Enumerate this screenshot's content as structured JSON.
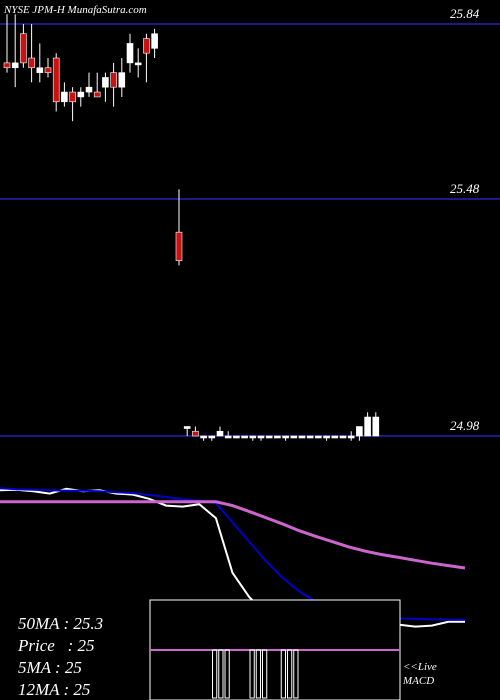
{
  "header": {
    "title": "NYSE JPM-H MunafaSutra.com"
  },
  "stats": {
    "ma50": "50MA : 25.3",
    "price": "Price   : 25",
    "ma5": "5MA : 25",
    "ma12": "12MA : 25"
  },
  "macd_panel": {
    "live_label": "<<Live",
    "macd_label": "MACD"
  },
  "colors": {
    "background": "#000000",
    "up_candle": "#ffffff",
    "down_candle": "#cc1111",
    "price_line": "#1a1a8a",
    "ma_short": "#0000cc",
    "ma_long": "#cc66cc",
    "price_path": "#ffffff"
  },
  "chart_data": [
    {
      "type": "candlestick",
      "title": "NYSE JPM-H MunafaSutra.com",
      "price_levels": [
        25.84,
        25.48,
        24.98
      ],
      "y_range": [
        24.96,
        25.88
      ],
      "candles": [
        {
          "o": 25.76,
          "h": 25.86,
          "l": 25.74,
          "c": 25.75
        },
        {
          "o": 25.75,
          "h": 25.86,
          "l": 25.71,
          "c": 25.76
        },
        {
          "o": 25.82,
          "h": 25.84,
          "l": 25.75,
          "c": 25.76
        },
        {
          "o": 25.77,
          "h": 25.84,
          "l": 25.72,
          "c": 25.75
        },
        {
          "o": 25.74,
          "h": 25.8,
          "l": 25.72,
          "c": 25.75
        },
        {
          "o": 25.75,
          "h": 25.77,
          "l": 25.73,
          "c": 25.74
        },
        {
          "o": 25.77,
          "h": 25.78,
          "l": 25.66,
          "c": 25.68
        },
        {
          "o": 25.68,
          "h": 25.72,
          "l": 25.67,
          "c": 25.7
        },
        {
          "o": 25.7,
          "h": 25.71,
          "l": 25.64,
          "c": 25.68
        },
        {
          "o": 25.69,
          "h": 25.71,
          "l": 25.67,
          "c": 25.7
        },
        {
          "o": 25.7,
          "h": 25.74,
          "l": 25.69,
          "c": 25.71
        },
        {
          "o": 25.7,
          "h": 25.74,
          "l": 25.69,
          "c": 25.69
        },
        {
          "o": 25.71,
          "h": 25.74,
          "l": 25.68,
          "c": 25.73
        },
        {
          "o": 25.74,
          "h": 25.76,
          "l": 25.67,
          "c": 25.71
        },
        {
          "o": 25.71,
          "h": 25.77,
          "l": 25.69,
          "c": 25.74
        },
        {
          "o": 25.76,
          "h": 25.82,
          "l": 25.74,
          "c": 25.8
        },
        {
          "o": 25.76,
          "h": 25.79,
          "l": 25.73,
          "c": 25.76
        },
        {
          "o": 25.81,
          "h": 25.82,
          "l": 25.72,
          "c": 25.78
        },
        {
          "o": 25.79,
          "h": 25.83,
          "l": 25.77,
          "c": 25.82
        },
        {
          "o": null,
          "h": null,
          "l": null,
          "c": null
        },
        {
          "o": 25.41,
          "h": 25.5,
          "l": 25.34,
          "c": 25.35
        },
        {
          "o": 25.0,
          "h": 25.0,
          "l": 24.98,
          "c": 25.0
        },
        {
          "o": 24.99,
          "h": 25.0,
          "l": 24.98,
          "c": 24.98
        },
        {
          "o": 24.98,
          "h": 24.98,
          "l": 24.97,
          "c": 24.98
        },
        {
          "o": 24.98,
          "h": 24.98,
          "l": 24.97,
          "c": 24.98
        },
        {
          "o": 24.98,
          "h": 25.0,
          "l": 24.98,
          "c": 24.99
        },
        {
          "o": 24.98,
          "h": 24.99,
          "l": 24.98,
          "c": 24.98
        },
        {
          "o": 24.98,
          "h": 24.98,
          "l": 24.98,
          "c": 24.98
        },
        {
          "o": 24.98,
          "h": 24.98,
          "l": 24.98,
          "c": 24.98
        },
        {
          "o": 24.98,
          "h": 24.98,
          "l": 24.97,
          "c": 24.98
        },
        {
          "o": 24.98,
          "h": 24.98,
          "l": 24.97,
          "c": 24.98
        },
        {
          "o": 24.98,
          "h": 24.98,
          "l": 24.98,
          "c": 24.98
        },
        {
          "o": 24.98,
          "h": 24.98,
          "l": 24.98,
          "c": 24.98
        },
        {
          "o": 24.98,
          "h": 24.98,
          "l": 24.97,
          "c": 24.98
        },
        {
          "o": 24.98,
          "h": 24.98,
          "l": 24.98,
          "c": 24.98
        },
        {
          "o": 24.98,
          "h": 24.98,
          "l": 24.98,
          "c": 24.98
        },
        {
          "o": 24.98,
          "h": 24.98,
          "l": 24.98,
          "c": 24.98
        },
        {
          "o": 24.98,
          "h": 24.98,
          "l": 24.98,
          "c": 24.98
        },
        {
          "o": 24.98,
          "h": 24.98,
          "l": 24.97,
          "c": 24.98
        },
        {
          "o": 24.98,
          "h": 24.98,
          "l": 24.98,
          "c": 24.98
        },
        {
          "o": 24.98,
          "h": 24.98,
          "l": 24.98,
          "c": 24.98
        },
        {
          "o": 24.98,
          "h": 24.99,
          "l": 24.97,
          "c": 24.98
        },
        {
          "o": 24.98,
          "h": 25.0,
          "l": 24.97,
          "c": 25.0
        },
        {
          "o": 24.98,
          "h": 25.03,
          "l": 24.98,
          "c": 25.02
        },
        {
          "o": 24.98,
          "h": 25.03,
          "l": 24.98,
          "c": 25.02
        }
      ]
    },
    {
      "type": "line",
      "series": [
        {
          "key": "price",
          "color": "#ffffff",
          "values": [
            0.62,
            0.63,
            0.6,
            0.55,
            0.65,
            0.6,
            0.62,
            0.55,
            0.53,
            0.44,
            0.3,
            0.28,
            0.33,
            0.04,
            -1.1,
            -1.6,
            -1.95,
            -2.1,
            -2.15,
            -2.18,
            -2.18,
            -2.18,
            -2.18,
            -2.18,
            -2.18,
            -2.22,
            -2.2,
            -2.12,
            -2.12
          ]
        },
        {
          "key": "ma_short",
          "color": "#0000cc",
          "values": [
            0.66,
            0.64,
            0.63,
            0.62,
            0.61,
            0.61,
            0.6,
            0.58,
            0.56,
            0.52,
            0.48,
            0.43,
            0.4,
            0.35,
            -0.05,
            -0.45,
            -0.85,
            -1.2,
            -1.48,
            -1.7,
            -1.85,
            -1.95,
            -2.0,
            -2.03,
            -2.05,
            -2.06,
            -2.07,
            -2.08,
            -2.08
          ]
        },
        {
          "key": "ma_long",
          "color": "#cc66cc",
          "values": [
            0.38,
            0.38,
            0.38,
            0.38,
            0.38,
            0.38,
            0.38,
            0.38,
            0.38,
            0.38,
            0.38,
            0.38,
            0.38,
            0.38,
            0.3,
            0.18,
            0.05,
            -0.08,
            -0.22,
            -0.34,
            -0.45,
            -0.56,
            -0.65,
            -0.72,
            -0.78,
            -0.84,
            -0.9,
            -0.95,
            -1.0
          ]
        }
      ]
    },
    {
      "type": "bar",
      "title": "MACD",
      "values": [
        0.0,
        0.0,
        0.0,
        0.0,
        0.0,
        0.0,
        0.0,
        0.0,
        0.0,
        0.0,
        -1.0,
        -1.0,
        -1.0,
        0.0,
        0.0,
        0.0,
        -1.0,
        -1.0,
        -1.0,
        0.0,
        0.0,
        -1.0,
        -1.0,
        -1.0,
        0.0,
        0.0,
        0.0,
        0.0,
        0.0,
        0.0,
        0.0,
        0.0,
        0.0,
        0.0,
        0.0,
        0.0,
        0.0,
        0.0,
        0.0,
        0.0
      ],
      "signal": 0.0
    }
  ]
}
